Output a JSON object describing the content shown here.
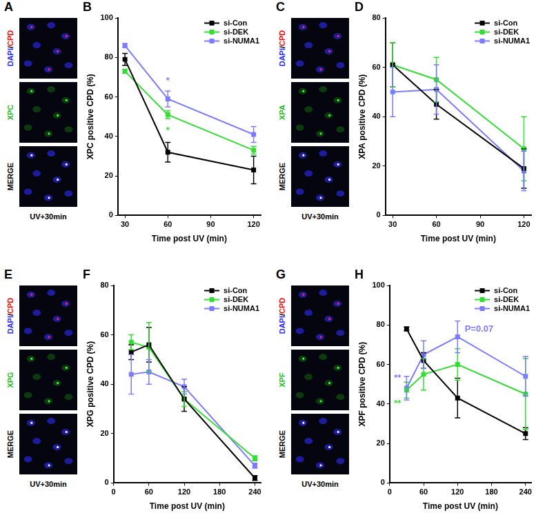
{
  "image_panels": [
    {
      "letter": "A",
      "rows": [
        {
          "parts": [
            {
              "text": "DAPI",
              "color": "#2a2aff"
            },
            {
              "text": "/",
              "color": "#000000"
            },
            {
              "text": "CPD",
              "color": "#ff0000"
            }
          ]
        },
        {
          "parts": [
            {
              "text": "XPC",
              "color": "#22bb22"
            }
          ]
        },
        {
          "parts": [
            {
              "text": "MERGE",
              "color": "#000000"
            }
          ]
        }
      ],
      "caption": "UV+30min"
    },
    {
      "letter": "C",
      "rows": [
        {
          "parts": [
            {
              "text": "DAPI",
              "color": "#2a2aff"
            },
            {
              "text": "/",
              "color": "#000000"
            },
            {
              "text": "CPD",
              "color": "#ff0000"
            }
          ]
        },
        {
          "parts": [
            {
              "text": "XPA",
              "color": "#22bb22"
            }
          ]
        },
        {
          "parts": [
            {
              "text": "MERGE",
              "color": "#000000"
            }
          ]
        }
      ],
      "caption": "UV+30min"
    },
    {
      "letter": "E",
      "rows": [
        {
          "parts": [
            {
              "text": "DAPI",
              "color": "#2a2aff"
            },
            {
              "text": "/",
              "color": "#000000"
            },
            {
              "text": "CPD",
              "color": "#ff0000"
            }
          ]
        },
        {
          "parts": [
            {
              "text": "XPG",
              "color": "#22bb22"
            }
          ]
        },
        {
          "parts": [
            {
              "text": "MERGE",
              "color": "#000000"
            }
          ]
        }
      ],
      "caption": "UV+30min"
    },
    {
      "letter": "G",
      "rows": [
        {
          "parts": [
            {
              "text": "DAPI",
              "color": "#2a2aff"
            },
            {
              "text": "/",
              "color": "#000000"
            },
            {
              "text": "CPD",
              "color": "#ff0000"
            }
          ]
        },
        {
          "parts": [
            {
              "text": "XPF",
              "color": "#22bb22"
            }
          ]
        },
        {
          "parts": [
            {
              "text": "MERGE",
              "color": "#000000"
            }
          ]
        }
      ],
      "caption": "UV+30min"
    }
  ],
  "chart_data": [
    {
      "letter": "B",
      "type": "line",
      "y_label": "XPC positive CPD (%)",
      "x_label": "Time post UV (min)",
      "x": [
        30,
        60,
        120
      ],
      "xlim": [
        25,
        125
      ],
      "xticks": [
        30,
        60,
        90,
        120
      ],
      "ylim": [
        0,
        100
      ],
      "yticks": [
        0,
        20,
        40,
        60,
        80,
        100
      ],
      "grid": false,
      "legend": "upper right",
      "marker": "square",
      "series": [
        {
          "name": "si-Con",
          "color": "#000000",
          "values": [
            79,
            32,
            23
          ],
          "errors": [
            3,
            5,
            7
          ]
        },
        {
          "name": "si-DEK",
          "color": "#33dd33",
          "values": [
            73,
            51,
            33
          ],
          "errors": [
            1,
            2,
            2
          ]
        },
        {
          "name": "si-NUMA1",
          "color": "#7b7bff",
          "values": [
            86,
            59,
            41
          ],
          "errors": [
            1,
            4,
            4
          ]
        }
      ],
      "annotations": [
        {
          "text": "*",
          "x": 60,
          "y": 68,
          "color": "#7b7bff"
        },
        {
          "text": "*",
          "x": 60,
          "y": 43,
          "color": "#33dd33"
        }
      ]
    },
    {
      "letter": "D",
      "type": "line",
      "y_label": "XPA positive CPD (%)",
      "x_label": "Time post UV (min)",
      "x": [
        30,
        60,
        120
      ],
      "xlim": [
        25,
        125
      ],
      "xticks": [
        30,
        60,
        90,
        120
      ],
      "ylim": [
        0,
        80
      ],
      "yticks": [
        0,
        20,
        40,
        60,
        80
      ],
      "grid": false,
      "legend": "upper right",
      "marker": "square",
      "series": [
        {
          "name": "si-Con",
          "color": "#000000",
          "values": [
            61,
            45,
            19
          ],
          "errors": [
            9,
            6,
            8
          ]
        },
        {
          "name": "si-DEK",
          "color": "#33dd33",
          "values": [
            61,
            55,
            27
          ],
          "errors": [
            9,
            9,
            13
          ]
        },
        {
          "name": "si-NUMA1",
          "color": "#7b7bff",
          "values": [
            50,
            51,
            18
          ],
          "errors": [
            10,
            10,
            8
          ]
        }
      ]
    },
    {
      "letter": "F",
      "type": "line",
      "y_label": "XPG positive CPD (%)",
      "x_label": "Time post UV (min)",
      "x": [
        30,
        60,
        120,
        240
      ],
      "xlim": [
        0,
        250
      ],
      "xticks": [
        0,
        60,
        120,
        180,
        240
      ],
      "ylim": [
        0,
        80
      ],
      "yticks": [
        0,
        20,
        40,
        60,
        80
      ],
      "grid": false,
      "legend": "upper right",
      "marker": "square",
      "series": [
        {
          "name": "si-Con",
          "color": "#000000",
          "values": [
            53,
            56,
            34,
            2
          ],
          "errors": [
            3,
            7,
            5,
            1
          ]
        },
        {
          "name": "si-DEK",
          "color": "#33dd33",
          "values": [
            57,
            55,
            34,
            10
          ],
          "errors": [
            3,
            10,
            3,
            1
          ]
        },
        {
          "name": "si-NUMA1",
          "color": "#7b7bff",
          "values": [
            44,
            45,
            39,
            7
          ],
          "errors": [
            8,
            5,
            3,
            1
          ]
        }
      ]
    },
    {
      "letter": "H",
      "type": "line",
      "y_label": "XPF positive CPD (%)",
      "x_label": "Time post UV (min)",
      "x": [
        30,
        60,
        120,
        240
      ],
      "xlim": [
        0,
        250
      ],
      "xticks": [
        0,
        60,
        120,
        180,
        240
      ],
      "ylim": [
        0,
        100
      ],
      "yticks": [
        0,
        20,
        40,
        60,
        80,
        100
      ],
      "grid": false,
      "legend": "upper right",
      "marker": "square",
      "series": [
        {
          "name": "si-Con",
          "color": "#000000",
          "values": [
            78,
            62,
            43,
            25
          ],
          "errors": [
            1,
            4,
            10,
            3
          ]
        },
        {
          "name": "si-DEK",
          "color": "#33dd33",
          "values": [
            47,
            55,
            60,
            45
          ],
          "errors": [
            4,
            8,
            8,
            18
          ]
        },
        {
          "name": "si-NUMA1",
          "color": "#7b7bff",
          "values": [
            48,
            65,
            74,
            54
          ],
          "errors": [
            6,
            7,
            8,
            10
          ]
        }
      ],
      "annotations": [
        {
          "text": "**",
          "x": 14,
          "y": 53,
          "color": "#7b7bff"
        },
        {
          "text": "**",
          "x": 14,
          "y": 40,
          "color": "#33dd33"
        },
        {
          "text": "P=0.07",
          "x": 158,
          "y": 78,
          "color": "#7b7bff"
        }
      ]
    }
  ]
}
